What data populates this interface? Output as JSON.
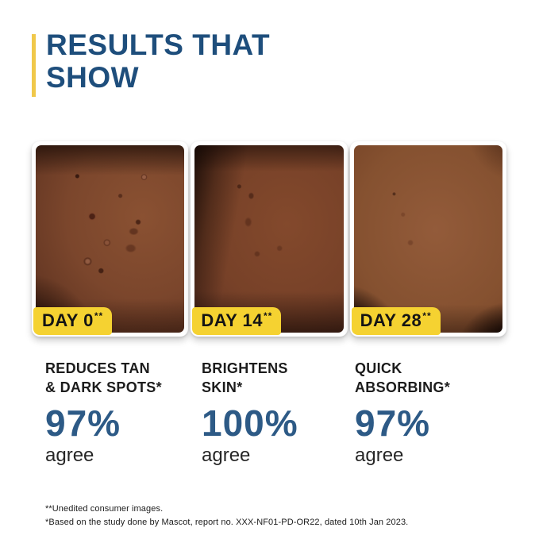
{
  "title": {
    "line1": "RESULTS THAT",
    "line2": "SHOW"
  },
  "colors": {
    "title_blue": "#1e4e7c",
    "stat_blue": "#2d5a86",
    "badge_yellow": "#f5d231",
    "accent_bar_yellow": "#f0c84a",
    "text_black": "#1c1c1c"
  },
  "photos": [
    {
      "day_label": "DAY 0",
      "asterisks": "**"
    },
    {
      "day_label": "DAY 14",
      "asterisks": "**"
    },
    {
      "day_label": "DAY 28",
      "asterisks": "**"
    }
  ],
  "stats": [
    {
      "heading_line1": "REDUCES TAN",
      "heading_line2": "& DARK SPOTS*",
      "percent": "97%",
      "caption": "agree"
    },
    {
      "heading_line1": "BRIGHTENS",
      "heading_line2": "SKIN*",
      "percent": "100%",
      "caption": "agree"
    },
    {
      "heading_line1": "QUICK",
      "heading_line2": "ABSORBING*",
      "percent": "97%",
      "caption": "agree"
    }
  ],
  "footnotes": {
    "line1": "**Unedited consumer images.",
    "line2": "*Based on the study done by Mascot, report no. XXX-NF01-PD-OR22, dated 10th Jan 2023."
  }
}
